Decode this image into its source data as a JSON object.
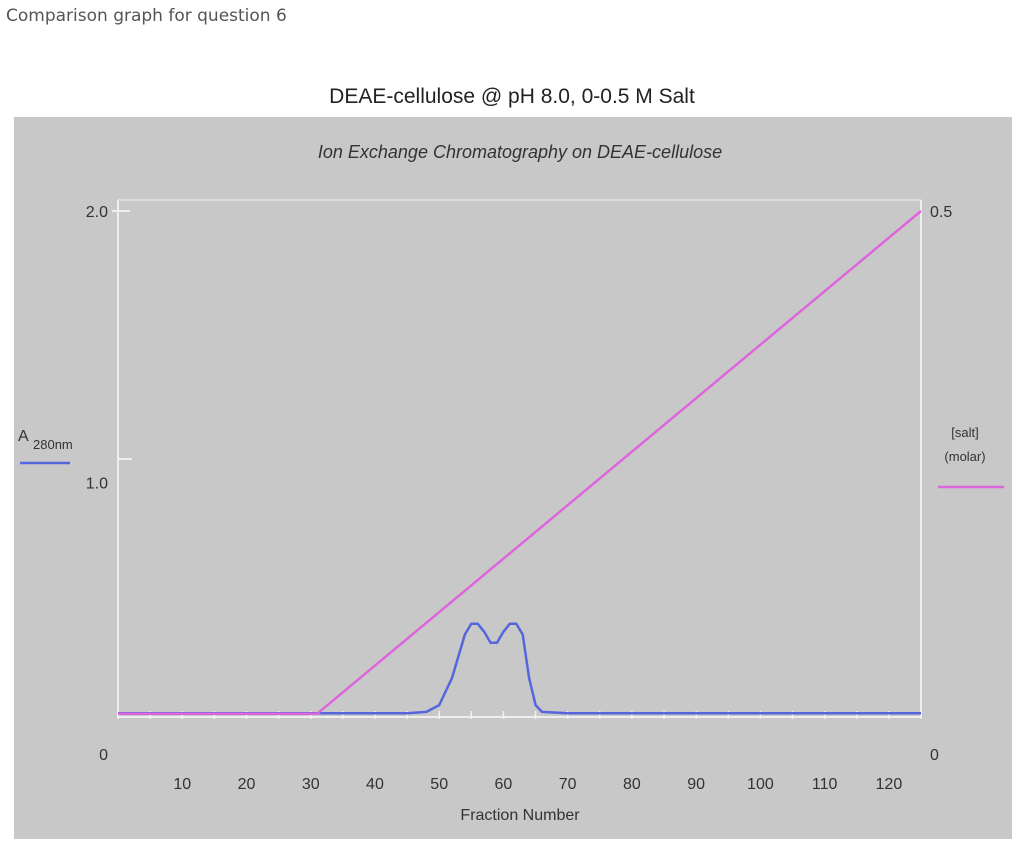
{
  "caption": "Comparison graph for question 6",
  "chart_data": {
    "type": "line",
    "title": "DEAE-cellulose  @ pH 8.0, 0-0.5 M Salt",
    "subtitle": "Ion Exchange Chromatography on DEAE-cellulose",
    "xlabel": "Fraction Number",
    "xlim": [
      0,
      125
    ],
    "x_ticks": [
      10,
      20,
      30,
      40,
      50,
      60,
      70,
      80,
      90,
      100,
      110,
      120
    ],
    "y_left": {
      "label_main": "A",
      "label_sub": "280nm",
      "ticks": [
        {
          "v": 0,
          "t": "0"
        },
        {
          "v": 1.0,
          "t": "1.0"
        },
        {
          "v": 2.0,
          "t": "2.0"
        }
      ],
      "ylim": [
        0,
        2.0
      ],
      "color": "#5566dd"
    },
    "y_right": {
      "label_lines": [
        "[salt]",
        "(molar)"
      ],
      "ticks": [
        {
          "v": 0,
          "t": "0"
        },
        {
          "v": 0.5,
          "t": "0.5"
        }
      ],
      "ylim": [
        0,
        0.5
      ],
      "color": "#dd66dd"
    },
    "series": [
      {
        "axis": "left",
        "color": "#5566dd",
        "x": [
          0,
          30,
          45,
          48,
          50,
          52,
          54,
          55,
          56,
          57,
          58,
          59,
          60,
          61,
          62,
          63,
          64,
          65,
          66,
          70,
          80,
          100,
          125
        ],
        "y": [
          0.15,
          0.15,
          0.15,
          0.155,
          0.18,
          0.28,
          0.44,
          0.48,
          0.48,
          0.45,
          0.41,
          0.41,
          0.45,
          0.48,
          0.48,
          0.44,
          0.28,
          0.18,
          0.155,
          0.15,
          0.15,
          0.15,
          0.15
        ]
      },
      {
        "axis": "right",
        "color": "#dd66dd",
        "x": [
          0,
          31,
          125
        ],
        "y": [
          0.037,
          0.037,
          0.5
        ]
      }
    ]
  }
}
